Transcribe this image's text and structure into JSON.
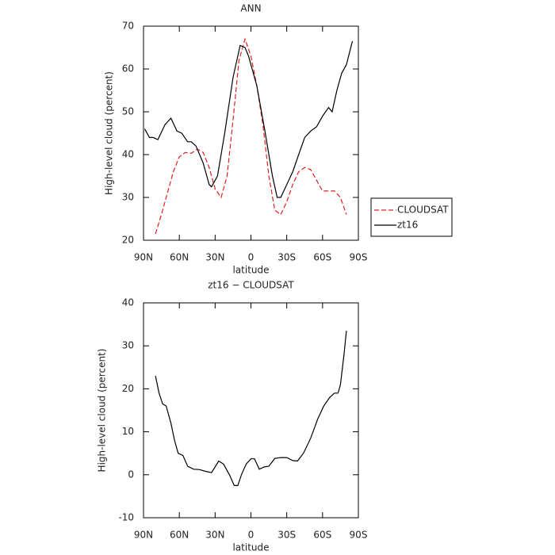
{
  "chart_data": [
    {
      "type": "line",
      "title": "ANN",
      "x_label": "latitude",
      "y_label": "High-level cloud (percent)",
      "xlim": [
        90,
        -90
      ],
      "xticks": [
        {
          "value": 90,
          "label": "90N"
        },
        {
          "value": 60,
          "label": "60N"
        },
        {
          "value": 30,
          "label": "30N"
        },
        0,
        {
          "value": -30,
          "label": "30S"
        },
        {
          "value": -60,
          "label": "60S"
        },
        {
          "value": -90,
          "label": "90S"
        }
      ],
      "ylim": [
        20,
        70
      ],
      "yticks": [
        20,
        30,
        40,
        50,
        60,
        70
      ],
      "series": [
        {
          "name": "CLOUDSAT",
          "color": "#e02020",
          "dash": true,
          "x": [
            80,
            75,
            70,
            65,
            60,
            55,
            50,
            45,
            40,
            35,
            30,
            25,
            20,
            15,
            10,
            5,
            0,
            -5,
            -10,
            -15,
            -20,
            -25,
            -30,
            -35,
            -40,
            -45,
            -50,
            -55,
            -60,
            -65,
            -70,
            -75,
            -80
          ],
          "values": [
            21.5,
            26,
            31,
            36,
            39.5,
            40.5,
            40.3,
            41.3,
            40.5,
            37,
            32,
            30,
            35,
            48,
            62,
            67,
            63,
            56,
            47,
            35,
            27,
            26,
            29,
            33,
            36,
            37,
            36.5,
            34,
            31.5,
            31.5,
            31.5,
            30,
            26
          ]
        },
        {
          "name": "zt16",
          "color": "#000000",
          "dash": false,
          "x": [
            89,
            85,
            82,
            78,
            72,
            67,
            62,
            58,
            53,
            50,
            46,
            40,
            35,
            33,
            28,
            22,
            15,
            9,
            5,
            2,
            -5,
            -12,
            -18,
            -22,
            -25,
            -30,
            -35,
            -40,
            -45,
            -50,
            -55,
            -60,
            -65,
            -68,
            -72,
            -76,
            -80,
            -85
          ],
          "values": [
            46,
            44,
            44,
            43.5,
            47,
            48.5,
            45.5,
            45,
            43,
            43,
            42,
            38,
            33,
            32.5,
            35,
            45,
            58,
            65.5,
            65,
            63,
            56,
            45,
            35,
            30,
            30,
            33,
            36,
            40,
            44,
            45.5,
            46.5,
            49,
            51,
            50,
            55,
            59,
            61,
            66.5
          ]
        }
      ]
    },
    {
      "type": "line",
      "title": "zt16 − CLOUDSAT",
      "x_label": "latitude",
      "y_label": "High-level cloud (percent)",
      "xlim": [
        90,
        -90
      ],
      "xticks": [
        {
          "value": 90,
          "label": "90N"
        },
        {
          "value": 60,
          "label": "60N"
        },
        {
          "value": 30,
          "label": "30N"
        },
        0,
        {
          "value": -30,
          "label": "30S"
        },
        {
          "value": -60,
          "label": "60S"
        },
        {
          "value": -90,
          "label": "90S"
        }
      ],
      "ylim": [
        -10,
        40
      ],
      "yticks": [
        -10,
        0,
        10,
        20,
        30,
        40
      ],
      "series": [
        {
          "color": "#000000",
          "dash": false,
          "x": [
            80,
            77,
            74,
            71,
            67,
            64,
            61,
            57,
            53,
            48,
            43,
            38,
            33,
            27,
            23,
            18,
            14,
            11,
            8,
            4,
            0,
            -3,
            -7,
            -11,
            -15,
            -20,
            -25,
            -30,
            -35,
            -39,
            -44,
            -50,
            -56,
            -61,
            -66,
            -70,
            -73,
            -75,
            -78,
            -80
          ],
          "values": [
            23,
            19,
            16.5,
            16,
            12,
            8,
            5,
            4.5,
            2,
            1.3,
            1.2,
            0.8,
            0.5,
            3.2,
            2.5,
            0,
            -2.5,
            -2.5,
            0,
            2.5,
            3.7,
            3.7,
            1.3,
            1.8,
            2,
            3.8,
            4,
            4,
            3.3,
            3.2,
            5,
            8.5,
            13,
            16,
            18,
            19,
            19,
            21,
            28,
            33.5
          ]
        }
      ]
    }
  ]
}
